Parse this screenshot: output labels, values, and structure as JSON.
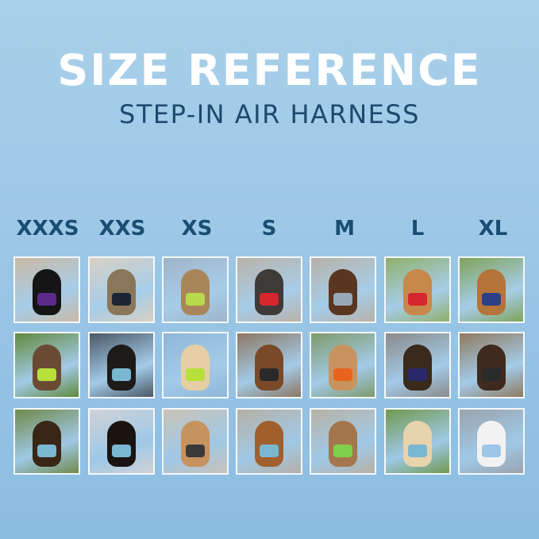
{
  "header": {
    "title": "SIZE REFERENCE",
    "subtitle": "STEP-IN AIR HARNESS"
  },
  "sizes": [
    {
      "label": "XXXS"
    },
    {
      "label": "XXS"
    },
    {
      "label": "XS"
    },
    {
      "label": "S"
    },
    {
      "label": "M"
    },
    {
      "label": "L"
    },
    {
      "label": "XL"
    }
  ],
  "rows_of_photos": 3
}
